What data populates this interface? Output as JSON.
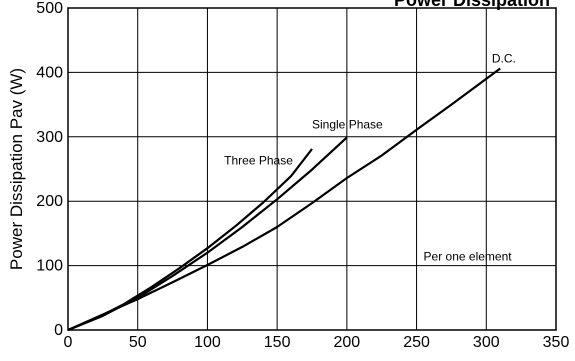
{
  "chart_data": {
    "type": "line",
    "title": "Power Dissipation",
    "xlabel": "",
    "ylabel": "Power Dissipation Pav (W)",
    "xlim": [
      0,
      350
    ],
    "ylim": [
      0,
      500
    ],
    "x_ticks": [
      0,
      50,
      100,
      150,
      200,
      250,
      300,
      350
    ],
    "y_ticks": [
      0,
      100,
      200,
      300,
      400,
      500
    ],
    "grid": true,
    "legend": "none",
    "series": [
      {
        "name": "Three Phase",
        "color": "#000000",
        "x": [
          0,
          20,
          40,
          60,
          80,
          100,
          120,
          140,
          160,
          175
        ],
        "y": [
          0,
          18,
          40,
          67,
          96,
          127,
          161,
          198,
          239,
          281
        ]
      },
      {
        "name": "Single Phase",
        "color": "#000000",
        "x": [
          0,
          25,
          50,
          75,
          100,
          125,
          150,
          175,
          200
        ],
        "y": [
          0,
          22,
          50,
          84,
          120,
          160,
          203,
          249,
          299
        ]
      },
      {
        "name": "D.C.",
        "color": "#000000",
        "x": [
          0,
          25,
          50,
          75,
          100,
          125,
          150,
          175,
          200,
          225,
          250,
          275,
          310
        ],
        "y": [
          0,
          24,
          48,
          74,
          101,
          129,
          160,
          197,
          236,
          271,
          311,
          350,
          406
        ]
      }
    ],
    "annotations": [
      {
        "id": "three-phase",
        "text": "Three Phase",
        "x": 112,
        "y": 257
      },
      {
        "id": "single-phase",
        "text": "Single Phase",
        "x": 175,
        "y": 313
      },
      {
        "id": "dc",
        "text": "D.C.",
        "x": 304,
        "y": 415
      },
      {
        "id": "per-one-element",
        "text": "Per one element",
        "x": 255,
        "y": 108
      }
    ]
  }
}
